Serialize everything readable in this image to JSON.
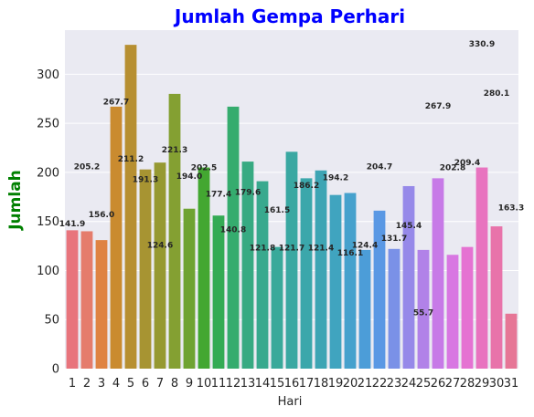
{
  "chart_data": {
    "type": "bar",
    "title": "Jumlah Gempa Perhari",
    "xlabel": "Hari",
    "ylabel": "Jumlah",
    "title_color": "#0000ff",
    "ylabel_color": "#008000",
    "grid": true,
    "background": "#eaeaf2",
    "ylim": [
      0,
      345
    ],
    "yticks": [
      0,
      50,
      100,
      150,
      200,
      250,
      300
    ],
    "categories": [
      "1",
      "2",
      "3",
      "4",
      "5",
      "6",
      "7",
      "8",
      "9",
      "10",
      "11",
      "12",
      "13",
      "14",
      "15",
      "16",
      "17",
      "18",
      "19",
      "20",
      "21",
      "22",
      "23",
      "24",
      "25",
      "26",
      "27",
      "28",
      "29",
      "30",
      "31"
    ],
    "values": [
      141,
      140,
      131,
      267,
      330,
      203,
      210,
      280,
      163,
      205,
      156,
      267,
      211,
      191,
      124,
      221,
      194,
      202,
      177,
      179,
      121,
      161,
      122,
      186,
      121,
      194,
      116,
      124,
      205,
      145,
      56
    ],
    "colors": [
      "#e8747c",
      "#e57c6c",
      "#df8342",
      "#ca8b2f",
      "#b78f31",
      "#a79432",
      "#969932",
      "#84a032",
      "#6fa332",
      "#43a731",
      "#34ab54",
      "#35ac6e",
      "#37aa82",
      "#38a98e",
      "#39a99a",
      "#3aa8a2",
      "#3ba7ab",
      "#3da5b4",
      "#40a4bf",
      "#46a1cd",
      "#4c9dd8",
      "#5a98e4",
      "#7a91e7",
      "#9689e9",
      "#b182e8",
      "#c77ae7",
      "#d877e2",
      "#e572d2",
      "#e873bf",
      "#e873aa",
      "#e67696"
    ],
    "data_labels": [
      {
        "text": "141.9",
        "at_x": 1,
        "at_y": 148
      },
      {
        "text": "205.2",
        "at_x": 2,
        "at_y": 206
      },
      {
        "text": "156.0",
        "at_x": 3,
        "at_y": 157
      },
      {
        "text": "267.7",
        "at_x": 4,
        "at_y": 272
      },
      {
        "text": "211.2",
        "at_x": 5,
        "at_y": 214
      },
      {
        "text": "191.3",
        "at_x": 6,
        "at_y": 193
      },
      {
        "text": "124.6",
        "at_x": 7,
        "at_y": 126
      },
      {
        "text": "221.3",
        "at_x": 8,
        "at_y": 223
      },
      {
        "text": "194.0",
        "at_x": 9,
        "at_y": 196
      },
      {
        "text": "202.5",
        "at_x": 10,
        "at_y": 205
      },
      {
        "text": "177.4",
        "at_x": 11,
        "at_y": 178
      },
      {
        "text": "140.8",
        "at_x": 12,
        "at_y": 142
      },
      {
        "text": "179.6",
        "at_x": 13,
        "at_y": 180
      },
      {
        "text": "121.8",
        "at_x": 14,
        "at_y": 123
      },
      {
        "text": "161.5",
        "at_x": 15,
        "at_y": 162
      },
      {
        "text": "121.7",
        "at_x": 16,
        "at_y": 123
      },
      {
        "text": "186.2",
        "at_x": 17,
        "at_y": 187
      },
      {
        "text": "121.4",
        "at_x": 18,
        "at_y": 123
      },
      {
        "text": "194.2",
        "at_x": 19,
        "at_y": 195
      },
      {
        "text": "116.1",
        "at_x": 20,
        "at_y": 118
      },
      {
        "text": "124.4",
        "at_x": 21,
        "at_y": 126
      },
      {
        "text": "204.7",
        "at_x": 22,
        "at_y": 206
      },
      {
        "text": "131.7",
        "at_x": 23,
        "at_y": 133
      },
      {
        "text": "145.4",
        "at_x": 24,
        "at_y": 146
      },
      {
        "text": "55.7",
        "at_x": 25,
        "at_y": 57
      },
      {
        "text": "267.9",
        "at_x": 26,
        "at_y": 268
      },
      {
        "text": "202.8",
        "at_x": 27,
        "at_y": 205
      },
      {
        "text": "209.4",
        "at_x": 28,
        "at_y": 210
      },
      {
        "text": "330.9",
        "at_x": 29,
        "at_y": 331
      },
      {
        "text": "280.1",
        "at_x": 30,
        "at_y": 281
      },
      {
        "text": "163.3",
        "at_x": 31,
        "at_y": 164
      }
    ]
  }
}
